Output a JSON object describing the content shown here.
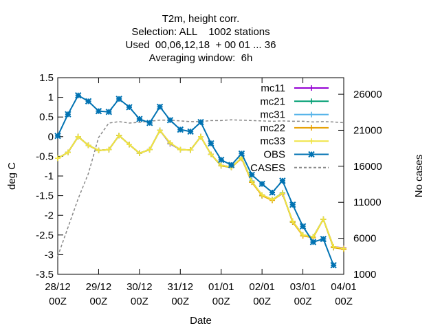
{
  "chart_data": {
    "type": "line",
    "title_lines": [
      "T2m, height corr.",
      "Selection: ALL    1002 stations",
      "Used  00,06,12,18  + 00 01 ... 36",
      "Averaging window:  6h"
    ],
    "xlabel": "Date",
    "ylabel": "deg C",
    "y2label": "No cases",
    "x_ticks": [
      {
        "x": 0,
        "line1": "28/12",
        "line2": "00Z"
      },
      {
        "x": 24,
        "line1": "29/12",
        "line2": "00Z"
      },
      {
        "x": 48,
        "line1": "30/12",
        "line2": "00Z"
      },
      {
        "x": 72,
        "line1": "31/12",
        "line2": "00Z"
      },
      {
        "x": 96,
        "line1": "01/01",
        "line2": "00Z"
      },
      {
        "x": 120,
        "line1": "02/01",
        "line2": "00Z"
      },
      {
        "x": 144,
        "line1": "03/01",
        "line2": "00Z"
      },
      {
        "x": 168,
        "line1": "04/01",
        "line2": "00Z"
      }
    ],
    "xlim": [
      0,
      168
    ],
    "ylim": [
      -3.5,
      1.5
    ],
    "y_ticks": [
      {
        "v": 1.5,
        "label": "1.5"
      },
      {
        "v": 1,
        "label": "1"
      },
      {
        "v": 0.5,
        "label": "0.5"
      },
      {
        "v": 0,
        "label": "0"
      },
      {
        "v": -0.5,
        "label": "-0.5"
      },
      {
        "v": -1,
        "label": "-1"
      },
      {
        "v": -1.5,
        "label": "-1.5"
      },
      {
        "v": -2,
        "label": "-2"
      },
      {
        "v": -2.5,
        "label": "-2.5"
      },
      {
        "v": -3,
        "label": "-3"
      },
      {
        "v": -3.5,
        "label": "-3.5"
      }
    ],
    "y2lim": [
      1000,
      28300
    ],
    "y2_ticks": [
      {
        "v": 1000,
        "label": "1000"
      },
      {
        "v": 6000,
        "label": "6000"
      },
      {
        "v": 11000,
        "label": "11000"
      },
      {
        "v": 16000,
        "label": "16000"
      },
      {
        "v": 21000,
        "label": "21000"
      },
      {
        "v": 26000,
        "label": "26000"
      }
    ],
    "x": [
      0,
      6,
      12,
      18,
      24,
      30,
      36,
      42,
      48,
      54,
      60,
      66,
      72,
      78,
      84,
      90,
      96,
      102,
      108,
      114,
      120,
      126,
      132,
      138,
      144,
      150,
      156,
      162,
      168
    ],
    "series": [
      {
        "name": "mc11",
        "color": "#9400d3",
        "marker": "plus",
        "values": [
          -0.55,
          -0.4,
          0.0,
          -0.22,
          -0.35,
          -0.33,
          0.03,
          -0.2,
          -0.42,
          -0.33,
          0.16,
          -0.18,
          -0.33,
          -0.34,
          0.0,
          -0.45,
          -0.73,
          -0.77,
          -0.55,
          -1.15,
          -1.48,
          -1.6,
          -1.45,
          -2.15,
          -2.5,
          -2.55,
          -2.1,
          -2.8,
          -2.83
        ]
      },
      {
        "name": "mc21",
        "color": "#009e73",
        "marker": "plus",
        "values": [
          -0.55,
          -0.4,
          0.0,
          -0.22,
          -0.35,
          -0.33,
          0.03,
          -0.2,
          -0.42,
          -0.33,
          0.16,
          -0.17,
          -0.33,
          -0.34,
          0.0,
          -0.45,
          -0.74,
          -0.78,
          -0.54,
          -1.13,
          -1.5,
          -1.6,
          -1.43,
          -2.17,
          -2.5,
          -2.55,
          -2.1,
          -2.82,
          -2.85
        ]
      },
      {
        "name": "mc31",
        "color": "#56b4e9",
        "marker": "plus",
        "values": [
          -0.55,
          -0.4,
          0.0,
          -0.22,
          -0.35,
          -0.33,
          0.03,
          -0.2,
          -0.42,
          -0.33,
          0.16,
          -0.17,
          -0.33,
          -0.34,
          0.0,
          -0.45,
          -0.73,
          -0.77,
          -0.54,
          -1.14,
          -1.49,
          -1.6,
          -1.44,
          -2.16,
          -2.5,
          -2.55,
          -2.1,
          -2.81,
          -2.84
        ]
      },
      {
        "name": "mc22",
        "color": "#e69f00",
        "marker": "plus",
        "values": [
          -0.55,
          -0.4,
          0.0,
          -0.22,
          -0.35,
          -0.33,
          0.03,
          -0.2,
          -0.42,
          -0.33,
          0.16,
          -0.16,
          -0.33,
          -0.34,
          0.0,
          -0.45,
          -0.74,
          -0.78,
          -0.55,
          -1.16,
          -1.5,
          -1.62,
          -1.44,
          -2.17,
          -2.52,
          -2.57,
          -2.1,
          -2.82,
          -2.86
        ]
      },
      {
        "name": "mc33",
        "color": "#f0e442",
        "marker": "plus",
        "values": [
          -0.55,
          -0.4,
          0.0,
          -0.22,
          -0.35,
          -0.33,
          0.03,
          -0.2,
          -0.42,
          -0.33,
          0.16,
          -0.16,
          -0.33,
          -0.34,
          0.0,
          -0.45,
          -0.73,
          -0.77,
          -0.54,
          -1.14,
          -1.48,
          -1.6,
          -1.44,
          -2.15,
          -2.5,
          -2.55,
          -2.1,
          -2.8,
          -2.84
        ]
      },
      {
        "name": "OBS",
        "color": "#0072b2",
        "marker": "star",
        "values": [
          0.02,
          0.57,
          1.05,
          0.9,
          0.65,
          0.63,
          0.96,
          0.75,
          0.45,
          0.35,
          0.76,
          0.42,
          0.18,
          0.13,
          0.37,
          -0.17,
          -0.59,
          -0.72,
          -0.43,
          -0.97,
          -1.2,
          -1.42,
          -1.12,
          -1.73,
          -2.28,
          -2.68,
          -2.6,
          -3.27,
          null
        ]
      }
    ],
    "cases": {
      "name": "CASES",
      "color": "#888888",
      "axis": "y2",
      "values": [
        3500,
        7500,
        11500,
        15000,
        20000,
        22000,
        22200,
        22000,
        22100,
        22250,
        22400,
        22400,
        22300,
        22200,
        22200,
        22350,
        22350,
        22450,
        22400,
        22350,
        22300,
        22250,
        22300,
        22250,
        22250,
        22150,
        22200,
        22150,
        22050
      ]
    },
    "legend_position": "top-right",
    "grid": false
  }
}
